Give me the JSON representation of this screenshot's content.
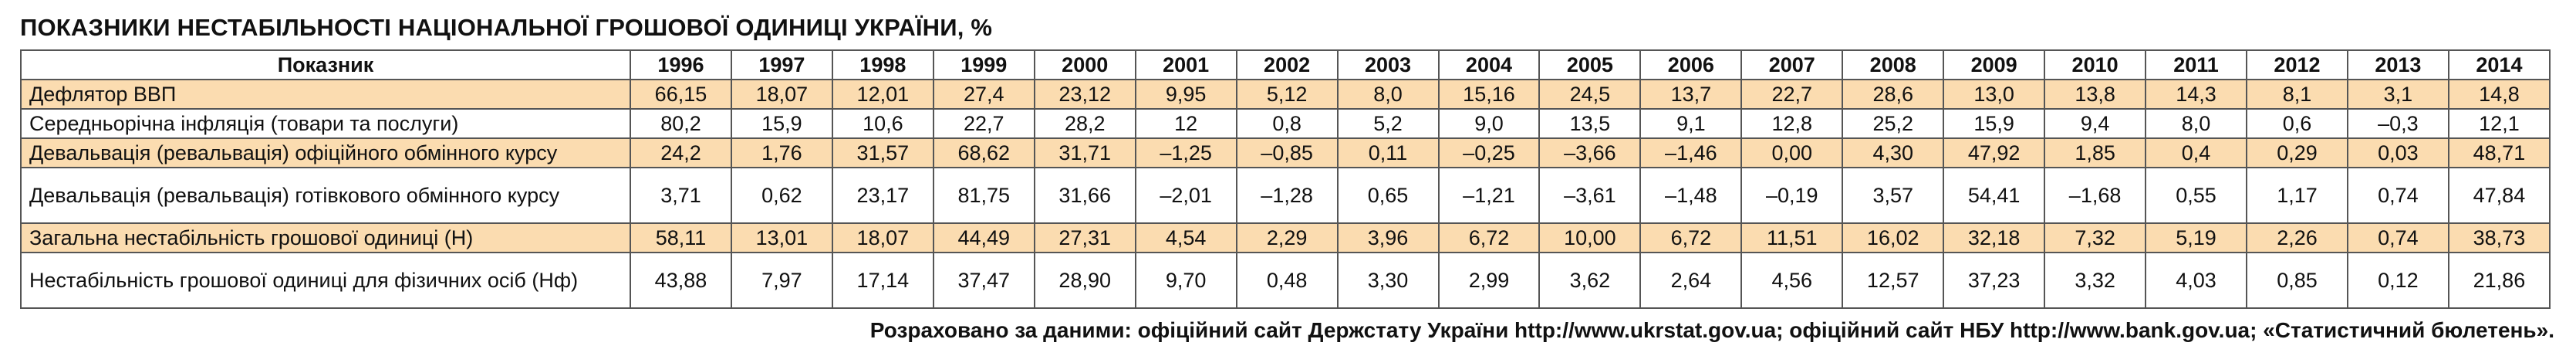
{
  "title": "ПОКАЗНИКИ НЕСТАБІЛЬНОСТІ НАЦІОНАЛЬНОЇ ГРОШОВОЇ ОДИНИЦІ УКРАЇНИ, %",
  "table": {
    "header_label": "Показник",
    "years": [
      "1996",
      "1997",
      "1998",
      "1999",
      "2000",
      "2001",
      "2002",
      "2003",
      "2004",
      "2005",
      "2006",
      "2007",
      "2008",
      "2009",
      "2010",
      "2011",
      "2012",
      "2013",
      "2014"
    ],
    "rows": [
      {
        "label": "Дефлятор ВВП",
        "values": [
          "66,15",
          "18,07",
          "12,01",
          "27,4",
          "23,12",
          "9,95",
          "5,12",
          "8,0",
          "15,16",
          "24,5",
          "13,7",
          "22,7",
          "28,6",
          "13,0",
          "13,8",
          "14,3",
          "8,1",
          "3,1",
          "14,8"
        ]
      },
      {
        "label": "Середньорічна інфляція (товари та послуги)",
        "values": [
          "80,2",
          "15,9",
          "10,6",
          "22,7",
          "28,2",
          "12",
          "0,8",
          "5,2",
          "9,0",
          "13,5",
          "9,1",
          "12,8",
          "25,2",
          "15,9",
          "9,4",
          "8,0",
          "0,6",
          "–0,3",
          "12,1"
        ]
      },
      {
        "label": "Девальвація (ревальвація) офіційного обмінного курсу",
        "values": [
          "24,2",
          "1,76",
          "31,57",
          "68,62",
          "31,71",
          "–1,25",
          "–0,85",
          "0,11",
          "–0,25",
          "–3,66",
          "–1,46",
          "0,00",
          "4,30",
          "47,92",
          "1,85",
          "0,4",
          "0,29",
          "0,03",
          "48,71"
        ]
      },
      {
        "label": "Девальвація (ревальвація) готівкового обмінного курсу",
        "values": [
          "3,71",
          "0,62",
          "23,17",
          "81,75",
          "31,66",
          "–2,01",
          "–1,28",
          "0,65",
          "–1,21",
          "–3,61",
          "–1,48",
          "–0,19",
          "3,57",
          "54,41",
          "–1,68",
          "0,55",
          "1,17",
          "0,74",
          "47,84"
        ]
      },
      {
        "label": "Загальна нестабільність грошової одиниці (Н)",
        "values": [
          "58,11",
          "13,01",
          "18,07",
          "44,49",
          "27,31",
          "4,54",
          "2,29",
          "3,96",
          "6,72",
          "10,00",
          "6,72",
          "11,51",
          "16,02",
          "32,18",
          "7,32",
          "5,19",
          "2,26",
          "0,74",
          "38,73"
        ]
      },
      {
        "label": "Нестабільність грошової одиниці для фізичних осіб (Нф)",
        "values": [
          "43,88",
          "7,97",
          "17,14",
          "37,47",
          "28,90",
          "9,70",
          "0,48",
          "3,30",
          "2,99",
          "3,62",
          "2,64",
          "4,56",
          "12,57",
          "37,23",
          "3,32",
          "4,03",
          "0,85",
          "0,12",
          "21,86"
        ]
      }
    ]
  },
  "footer": "Розраховано за даними: офіційний сайт Держстату України http://www.ukrstat.gov.ua; офіційний сайт НБУ http://www.bank.gov.ua; «Статистичний бюлетень».",
  "colors": {
    "row_shade": "#fbdcb0",
    "border": "#555555",
    "text": "#111111"
  }
}
